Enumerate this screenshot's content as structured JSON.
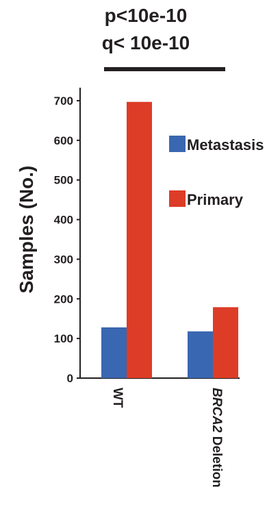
{
  "stats": {
    "line1": "p<10e-10",
    "line2": "q< 10e-10"
  },
  "chart_data": {
    "type": "bar",
    "categories": [
      "WT",
      "BRCA2 Deletion"
    ],
    "category_parts": [
      {
        "italic": "",
        "normal": "WT"
      },
      {
        "italic": "BRCA2",
        "normal": " Deletion"
      }
    ],
    "series": [
      {
        "name": "Metastasis",
        "color": "#3a67b1",
        "values": [
          128,
          118
        ]
      },
      {
        "name": "Primary",
        "color": "#dd3c27",
        "values": [
          697,
          179
        ]
      }
    ],
    "ylabel": "Samples (No.)",
    "xlabel": "",
    "ylim": [
      0,
      720
    ],
    "yticks": [
      0,
      100,
      200,
      300,
      400,
      500,
      600,
      700
    ],
    "legend_position": "right",
    "grid": false,
    "significance_bar": true
  }
}
